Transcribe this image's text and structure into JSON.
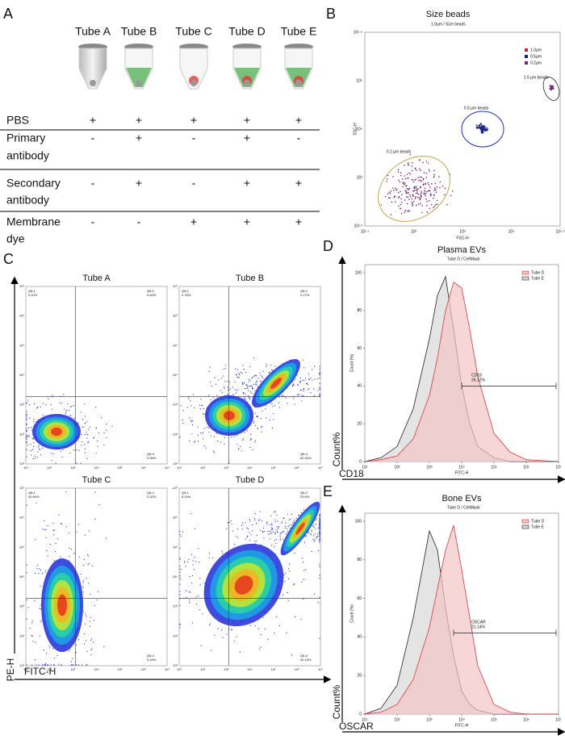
{
  "panel_labels": [
    "A",
    "B",
    "C",
    "D",
    "E"
  ],
  "panel_a": {
    "columns": [
      "Tube A",
      "Tube B",
      "Tube C",
      "Tube D",
      "Tube E"
    ],
    "rows": [
      {
        "label": [
          "PBS"
        ],
        "cells": [
          "+",
          "+",
          "+",
          "+",
          "+"
        ]
      },
      {
        "label": [
          "Primary",
          "antibody"
        ],
        "cells": [
          "-",
          "+",
          "-",
          "+",
          "-"
        ]
      },
      {
        "label": [
          "Secondary",
          "antibody"
        ],
        "cells": [
          "-",
          "+",
          "-",
          "+",
          "+"
        ]
      },
      {
        "label": [
          "Membrane",
          "dye"
        ],
        "cells": [
          "-",
          "-",
          "+",
          "+",
          "+"
        ]
      }
    ]
  },
  "panel_b": {
    "title": "Size beads",
    "subtitle": [
      "1.0μm",
      "/",
      "Size beads"
    ],
    "xlabel": "FSC-H",
    "ylabel": "SSC-H",
    "xticks": [
      "10¹·¹",
      "10²",
      "10³",
      "10⁴",
      "10⁵·²"
    ],
    "yticks": [
      "10²·³",
      "10³",
      "10⁴",
      "10⁵",
      "10⁵·⁶"
    ],
    "legend": [
      {
        "name": "1.0μm",
        "color": "#c0282d"
      },
      {
        "name": "0.5μm",
        "color": "#1a237e"
      },
      {
        "name": "0.2μm",
        "color": "#7b1f7a"
      }
    ],
    "annotations": [
      "1.0 μm beads",
      "0.5 μm beads",
      "0.2 μm beads"
    ]
  },
  "panel_c": {
    "axis_y": "PE-H",
    "axis_x": "FITC-H",
    "tick_labels": [
      "10¹",
      "10²",
      "10³",
      "10⁴",
      "10⁵",
      "10⁶",
      "10⁷"
    ],
    "plots": [
      {
        "title": "Tube A",
        "subtitle": "Tube A",
        "quadrants": [
          "Q8-1",
          "0.10%",
          "Q8-2",
          "0.64%",
          "Q8-4",
          "3.36%"
        ]
      },
      {
        "title": "Tube  B",
        "subtitle": "Tube B",
        "quadrants": [
          "Q8-1",
          "0.76%",
          "Q8-2",
          "0.17%",
          "Q8-4",
          "62.92%"
        ]
      },
      {
        "title": "Tube C",
        "subtitle": "Tube C",
        "quadrants": [
          "Q8-1",
          "40.69%",
          "Q8-2",
          "0.32%",
          "Q8-4",
          "0.49%"
        ]
      },
      {
        "title": "Tube  D",
        "subtitle": "Tube D",
        "quadrants": [
          "Q8-1",
          "6.24%",
          "Q8-2",
          "29.6%",
          "Q8-4",
          "40.15%"
        ]
      }
    ]
  },
  "panel_d": {
    "title": "Plasma EVs",
    "subtitle": [
      "Tube D",
      "/",
      "CellMask"
    ],
    "ylabel": "Count (%)",
    "xlabel": "FITC-H",
    "outer_y": "Count%",
    "outer_x": "CD18",
    "gate_label": "CD18",
    "gate_value": "26.12%",
    "xlim": [
      1,
      7
    ],
    "ylim": [
      0,
      100
    ],
    "yticks": [
      0,
      20,
      40,
      60,
      80,
      100
    ],
    "xticks": [
      {
        "value": 1,
        "label": "10¹"
      },
      {
        "value": 2,
        "label": "10²"
      },
      {
        "value": 3,
        "label": "10³"
      },
      {
        "value": 4,
        "label": "10⁴"
      },
      {
        "value": 5,
        "label": "10⁵"
      },
      {
        "value": 6,
        "label": "10⁶"
      },
      {
        "value": 7,
        "label": "10⁷"
      }
    ],
    "x": [
      1,
      1.5,
      2,
      2.5,
      3,
      3.25,
      3.5,
      3.75,
      4,
      4.25,
      4.5,
      5,
      5.5,
      6,
      7
    ],
    "series": [
      {
        "name": "Tube D",
        "color": "#d9383e",
        "fill": "#f2c4c4",
        "values": [
          0,
          1,
          3,
          12,
          35,
          55,
          80,
          95,
          92,
          70,
          45,
          15,
          5,
          1,
          0
        ]
      },
      {
        "name": "Tube E",
        "color": "#222222",
        "fill": "#d9d9d9",
        "values": [
          0,
          2,
          8,
          28,
          65,
          88,
          98,
          70,
          40,
          20,
          8,
          2,
          0,
          0,
          0
        ]
      }
    ]
  },
  "panel_e": {
    "title": "Bone EVs",
    "subtitle": [
      "Tube D",
      "/",
      "CellMask"
    ],
    "ylabel": "Count (%)",
    "xlabel": "FITC-H",
    "outer_y": "Count%",
    "outer_x": "OSCAR",
    "gate_label": "OSCAR",
    "gate_value": "21.14%",
    "xlim": [
      1,
      7
    ],
    "ylim": [
      0,
      100
    ],
    "yticks": [
      0,
      20,
      40,
      60,
      80,
      100
    ],
    "xticks": [
      {
        "value": 1,
        "label": "10¹"
      },
      {
        "value": 2,
        "label": "10²"
      },
      {
        "value": 3,
        "label": "10³"
      },
      {
        "value": 4,
        "label": "10⁴"
      },
      {
        "value": 5,
        "label": "10⁵"
      },
      {
        "value": 6,
        "label": "10⁶"
      },
      {
        "value": 7,
        "label": "10⁷"
      }
    ],
    "x": [
      1,
      1.5,
      2,
      2.5,
      3,
      3.25,
      3.5,
      3.75,
      4,
      4.25,
      4.5,
      5,
      5.5,
      6,
      7
    ],
    "series": [
      {
        "name": "Tube D",
        "color": "#d9383e",
        "fill": "#f2c4c4",
        "values": [
          0,
          1,
          5,
          18,
          45,
          65,
          85,
          98,
          75,
          50,
          25,
          5,
          1,
          0,
          0
        ]
      },
      {
        "name": "Tube E",
        "color": "#222222",
        "fill": "#d9d9d9",
        "values": [
          0,
          3,
          15,
          50,
          95,
          85,
          55,
          30,
          12,
          5,
          2,
          0,
          0,
          0,
          0
        ]
      }
    ]
  }
}
